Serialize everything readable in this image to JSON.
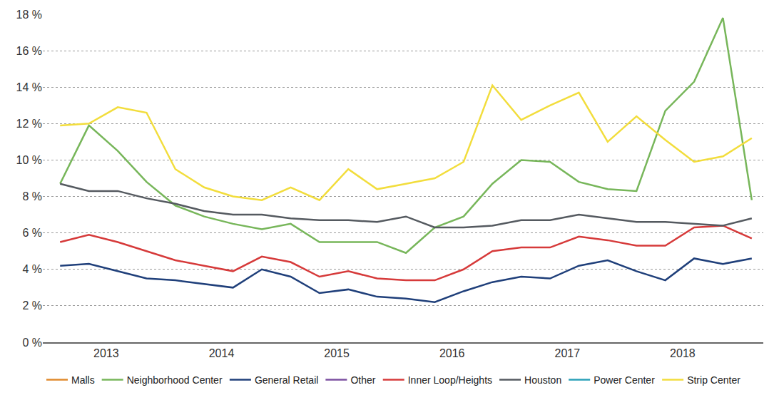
{
  "chart_data": {
    "type": "line",
    "x": [
      2013.1,
      2013.35,
      2013.6,
      2013.85,
      2014.1,
      2014.35,
      2014.6,
      2014.85,
      2015.1,
      2015.35,
      2015.6,
      2015.85,
      2016.1,
      2016.35,
      2016.6,
      2016.85,
      2017.1,
      2017.35,
      2017.6,
      2017.85,
      2018.1,
      2018.35,
      2018.6,
      2018.85,
      2019.1
    ],
    "xlim": [
      2012.95,
      2019.2
    ],
    "xticks": [
      {
        "value": 2013.5,
        "label": "2013"
      },
      {
        "value": 2014.5,
        "label": "2014"
      },
      {
        "value": 2015.5,
        "label": "2015"
      },
      {
        "value": 2016.5,
        "label": "2016"
      },
      {
        "value": 2017.5,
        "label": "2017"
      },
      {
        "value": 2018.5,
        "label": "2018"
      }
    ],
    "ylim": [
      0,
      18
    ],
    "yticks": [
      {
        "value": 0,
        "label": "0 %"
      },
      {
        "value": 2,
        "label": "2 %"
      },
      {
        "value": 4,
        "label": "4 %"
      },
      {
        "value": 6,
        "label": "6 %"
      },
      {
        "value": 8,
        "label": "8 %"
      },
      {
        "value": 10,
        "label": "10 %"
      },
      {
        "value": 12,
        "label": "12 %"
      },
      {
        "value": 14,
        "label": "14 %"
      },
      {
        "value": 16,
        "label": "16 %"
      },
      {
        "value": 18,
        "label": "18 %"
      }
    ],
    "grid": true,
    "legend": "bottom",
    "series": [
      {
        "name": "Malls",
        "color": "#e08a2c",
        "values": [
          null,
          null,
          null,
          null,
          null,
          null,
          null,
          null,
          null,
          null,
          null,
          null,
          null,
          null,
          null,
          null,
          null,
          null,
          null,
          null,
          null,
          null,
          null,
          null,
          null
        ]
      },
      {
        "name": "Neighborhood Center",
        "color": "#77b65a",
        "values": [
          8.7,
          11.9,
          10.5,
          8.8,
          7.5,
          6.9,
          6.5,
          6.2,
          6.5,
          5.5,
          5.5,
          5.5,
          4.9,
          6.3,
          6.9,
          8.7,
          10.0,
          9.9,
          8.8,
          8.4,
          8.3,
          12.7,
          14.3,
          17.8,
          7.8
        ]
      },
      {
        "name": "General Retail",
        "color": "#1f3f7a",
        "values": [
          4.2,
          4.3,
          3.9,
          3.5,
          3.4,
          3.2,
          3.0,
          4.0,
          3.6,
          2.7,
          2.9,
          2.5,
          2.4,
          2.2,
          2.8,
          3.3,
          3.6,
          3.5,
          4.2,
          4.5,
          3.9,
          3.4,
          4.6,
          4.3,
          4.6
        ]
      },
      {
        "name": "Other",
        "color": "#7b4fa0",
        "values": [
          null,
          null,
          null,
          null,
          null,
          null,
          null,
          null,
          null,
          null,
          null,
          null,
          null,
          null,
          null,
          null,
          null,
          null,
          null,
          null,
          null,
          null,
          null,
          null,
          null
        ]
      },
      {
        "name": "Inner Loop/Heights",
        "color": "#d63a3a",
        "values": [
          5.5,
          5.9,
          5.5,
          5.0,
          4.5,
          4.2,
          3.9,
          4.7,
          4.4,
          3.6,
          3.9,
          3.5,
          3.4,
          3.4,
          4.0,
          5.0,
          5.2,
          5.2,
          5.8,
          5.6,
          5.3,
          5.3,
          6.3,
          6.4,
          5.7
        ]
      },
      {
        "name": "Houston",
        "color": "#555a60",
        "values": [
          8.7,
          8.3,
          8.3,
          7.9,
          7.6,
          7.2,
          7.0,
          7.0,
          6.8,
          6.7,
          6.7,
          6.6,
          6.9,
          6.3,
          6.3,
          6.4,
          6.7,
          6.7,
          7.0,
          6.8,
          6.6,
          6.6,
          6.5,
          6.4,
          6.8
        ]
      },
      {
        "name": "Power Center",
        "color": "#2aa0b8",
        "values": [
          null,
          null,
          null,
          null,
          null,
          null,
          null,
          null,
          null,
          null,
          null,
          null,
          null,
          null,
          null,
          null,
          null,
          null,
          null,
          null,
          null,
          null,
          null,
          null,
          null
        ]
      },
      {
        "name": "Strip Center",
        "color": "#f2dd3c",
        "values": [
          11.9,
          12.0,
          12.9,
          12.6,
          9.5,
          8.5,
          8.0,
          7.8,
          8.5,
          7.8,
          9.5,
          8.4,
          8.7,
          9.0,
          9.9,
          14.1,
          12.2,
          13.0,
          13.7,
          11.0,
          12.4,
          11.1,
          9.9,
          10.2,
          11.2
        ]
      }
    ]
  }
}
